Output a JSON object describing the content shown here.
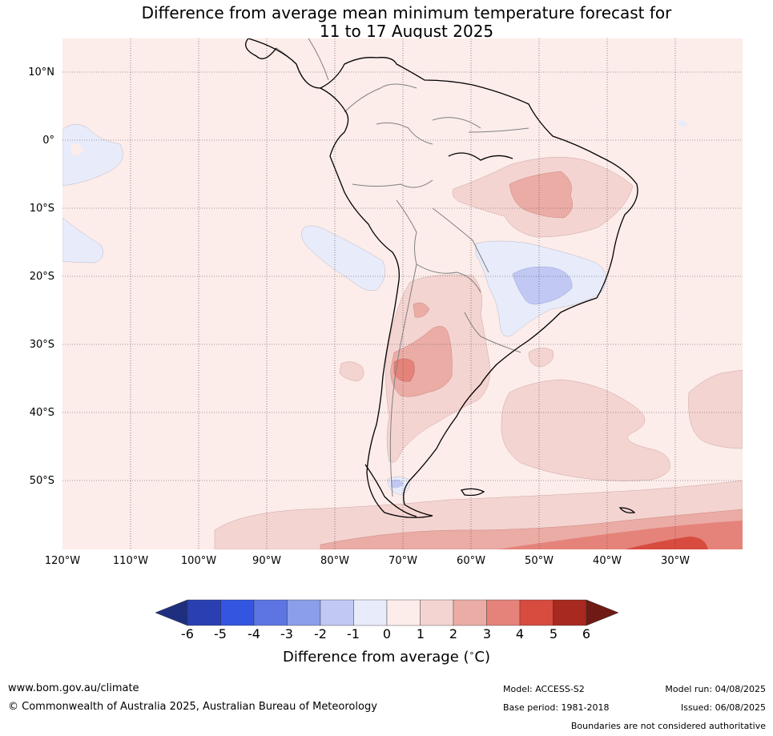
{
  "title": {
    "line1": "Difference from average mean minimum temperature forecast for",
    "line2": "11 to 17 August 2025"
  },
  "map": {
    "lat_labels": [
      "10°N",
      "0°",
      "10°S",
      "20°S",
      "30°S",
      "40°S",
      "50°S"
    ],
    "lon_labels": [
      "120°W",
      "110°W",
      "100°W",
      "90°W",
      "80°W",
      "70°W",
      "60°W",
      "50°W",
      "40°W",
      "30°W"
    ],
    "lon_range": [
      -120,
      -20
    ],
    "lat_range": [
      -60,
      15
    ],
    "background_anomaly_class": "0 to 1"
  },
  "colorbar": {
    "ticks": [
      "-6",
      "-5",
      "-4",
      "-3",
      "-2",
      "-1",
      "0",
      "1",
      "2",
      "3",
      "4",
      "5",
      "6"
    ],
    "colors": [
      "#1f2f7f",
      "#2a40b2",
      "#3355e0",
      "#5c75e2",
      "#8a9ee9",
      "#c0c8f3",
      "#e8ecfa",
      "#fcecea",
      "#f4d4d1",
      "#ebaca6",
      "#e5837a",
      "#d84b3f",
      "#a8291f",
      "#6f1a14"
    ],
    "label": "Difference from average (",
    "label_unit_symbol": "∘",
    "label_unit": "C)"
  },
  "footer": {
    "website": "www.bom.gov.au/climate",
    "copyright": "© Commonwealth of Australia 2025, Australian Bureau of Meteorology",
    "model": "Model: ACCESS-S2",
    "base_period": "Base period: 1981-2018",
    "model_run": "Model run: 04/08/2025",
    "issued": "Issued: 06/08/2025",
    "disclaimer": "Boundaries are not considered authoritative"
  }
}
